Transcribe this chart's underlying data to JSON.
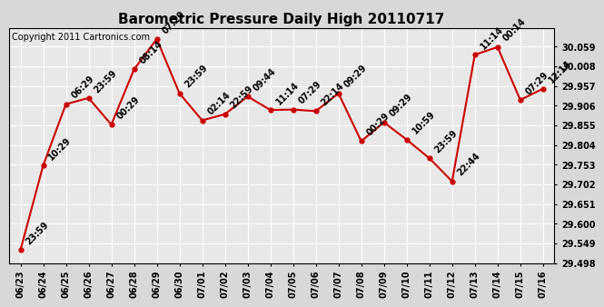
{
  "title": "Barometric Pressure Daily High 20110717",
  "copyright": "Copyright 2011 Cartronics.com",
  "x_labels": [
    "06/23",
    "06/24",
    "06/25",
    "06/26",
    "06/27",
    "06/28",
    "06/29",
    "06/30",
    "07/01",
    "07/02",
    "07/03",
    "07/04",
    "07/05",
    "07/06",
    "07/07",
    "07/08",
    "07/09",
    "07/10",
    "07/11",
    "07/12",
    "07/13",
    "07/14",
    "07/15",
    "07/16"
  ],
  "y_values": [
    29.532,
    29.751,
    29.91,
    29.926,
    29.857,
    30.0,
    30.079,
    29.938,
    29.868,
    29.884,
    29.93,
    29.895,
    29.896,
    29.892,
    29.938,
    29.814,
    29.863,
    29.818,
    29.77,
    29.71,
    30.038,
    30.058,
    29.921,
    29.95
  ],
  "point_labels": [
    "23:59",
    "10:29",
    "06:29",
    "23:59",
    "00:29",
    "08:14",
    "07:29",
    "23:59",
    "02:14",
    "22:59",
    "09:44",
    "11:14",
    "07:29",
    "22:14",
    "09:29",
    "00:29",
    "09:29",
    "10:59",
    "23:59",
    "22:44",
    "11:14",
    "00:14",
    "07:29",
    "12:14"
  ],
  "line_color": "#cc0000",
  "marker_color": "#cc0000",
  "background_color": "#d8d8d8",
  "plot_bg_color": "#e8e8e8",
  "grid_color": "#ffffff",
  "y_min": 29.498,
  "y_max": 30.107,
  "y_tick_interval": 0.051,
  "title_fontsize": 11,
  "label_fontsize": 7,
  "tick_fontsize": 7,
  "copyright_fontsize": 7
}
